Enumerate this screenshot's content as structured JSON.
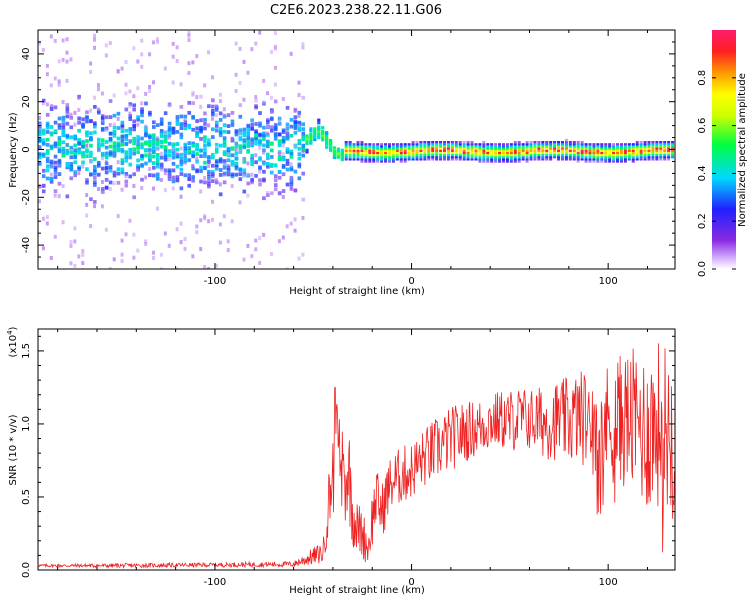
{
  "title": "C2E6.2023.238.22.11.G06",
  "colors": {
    "spectrogram_strong": "#ff2020",
    "spectrogram_weak": "#7a00ff",
    "snr_line": "#ee2222",
    "axis": "#000000"
  },
  "chart_data": [
    {
      "type": "heatmap",
      "title": "C2E6.2023.238.22.11.G06",
      "xlabel": "Height of straight line (km)",
      "ylabel": "Frequency (Hz)",
      "xlim": [
        -190,
        134
      ],
      "ylim": [
        -50,
        50
      ],
      "x_ticks": [
        -100,
        0,
        100
      ],
      "y_ticks": [
        40,
        20,
        0,
        -20,
        -40
      ],
      "x_tick_labels": [
        "-100",
        "0",
        "100"
      ],
      "y_tick_labels": [
        "40",
        "20",
        "0",
        "-20",
        "-40"
      ],
      "grid": false,
      "colorbar": {
        "label": "Normalized spectral amplitude",
        "range": [
          0.0,
          1.0
        ],
        "ticks": [
          0.0,
          0.2,
          0.4,
          0.6,
          0.8
        ],
        "tick_labels": [
          "0.0",
          "0.2",
          "0.4",
          "0.6",
          "0.8"
        ],
        "colormap": "rainbow (white-violet-blue-cyan-green-yellow-orange-red-magenta)"
      },
      "features": [
        {
          "x_range": [
            -190,
            -55
          ],
          "center_hz": 0,
          "description": "broad noisy band, spread roughly -30 to +30 Hz with scattered weak dots up to ±50 Hz"
        },
        {
          "x_range": [
            -55,
            -35
          ],
          "center_hz": 5,
          "description": "transition, signal narrows with a bump near +8 Hz"
        },
        {
          "x_range": [
            -35,
            134
          ],
          "center_hz": -1,
          "description": "narrow band within about ±3 Hz, highest amplitude (red) at center"
        }
      ]
    },
    {
      "type": "line",
      "xlabel": "Height of straight line (km)",
      "ylabel": "SNR (10 * v/v)",
      "y_multiplier_label": "(x10",
      "y_multiplier_exp": "4",
      "y_multiplier_close": ")",
      "xlim": [
        -190,
        134
      ],
      "ylim": [
        0,
        16500
      ],
      "x_ticks": [
        -100,
        0,
        100
      ],
      "x_tick_labels": [
        "-100",
        "0",
        "100"
      ],
      "y_ticks": [
        0,
        5000,
        10000,
        15000
      ],
      "y_tick_labels": [
        "0.0",
        "0.5",
        "1.0",
        "1.5"
      ],
      "grid": false,
      "series": [
        {
          "x": [
            -190,
            -150,
            -100,
            -60,
            -45,
            -40,
            -37,
            -35,
            -32,
            -30,
            -28,
            -25,
            -22,
            -20,
            -18,
            -15,
            -12,
            -10,
            -5,
            0,
            5,
            10,
            15,
            20,
            25,
            30,
            35,
            40,
            45,
            50,
            55,
            60,
            65,
            70,
            75,
            80,
            85,
            90,
            95,
            100,
            105,
            110,
            115,
            120,
            125,
            130,
            134
          ],
          "y": [
            300,
            300,
            350,
            400,
            1200,
            7000,
            9000,
            6000,
            7000,
            4000,
            3000,
            2500,
            1500,
            3500,
            5000,
            4000,
            5500,
            6000,
            6500,
            6800,
            7500,
            8000,
            8500,
            9000,
            9300,
            9600,
            9800,
            10200,
            10300,
            10200,
            10400,
            10300,
            10200,
            10100,
            10300,
            10200,
            10500,
            10400,
            10300,
            10000,
            10200,
            10400,
            10000,
            9500,
            10000,
            9800,
            9500
          ],
          "spread": [
            100,
            150,
            150,
            200,
            800,
            3500,
            3500,
            3000,
            3500,
            2500,
            1800,
            1800,
            1200,
            2000,
            2000,
            2000,
            2000,
            2000,
            2000,
            2000,
            2000,
            2200,
            2200,
            2200,
            2200,
            2000,
            2000,
            2000,
            2000,
            2200,
            2200,
            2200,
            2400,
            2600,
            2800,
            3000,
            3200,
            3400,
            3800,
            4200,
            4500,
            4800,
            5200,
            5600,
            5800,
            6000,
            6000
          ]
        }
      ]
    }
  ]
}
